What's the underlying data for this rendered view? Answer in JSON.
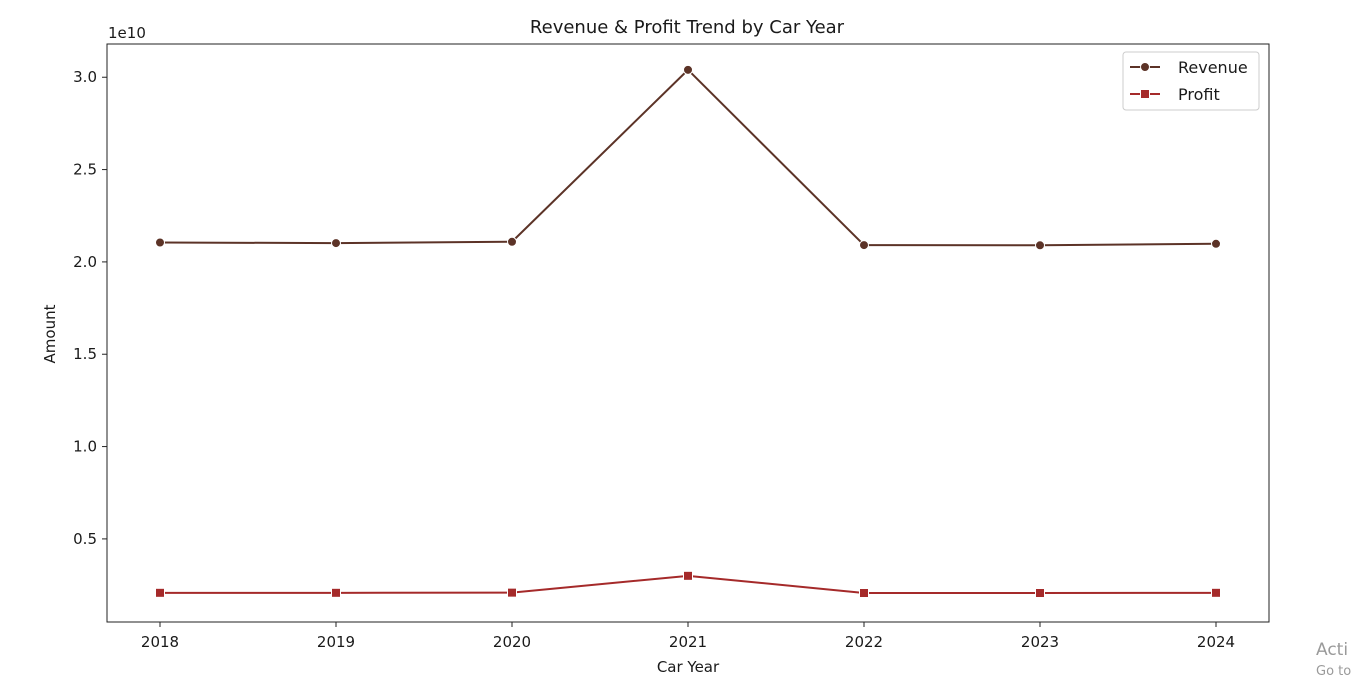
{
  "chart_data": {
    "type": "line",
    "title": "Revenue & Profit Trend by Car Year",
    "xlabel": "Car Year",
    "ylabel": "Amount",
    "y_offset_label": "1e10",
    "categories": [
      "2018",
      "2019",
      "2020",
      "2021",
      "2022",
      "2023",
      "2024"
    ],
    "yticks": [
      0.5,
      1.0,
      1.5,
      2.0,
      2.5,
      3.0
    ],
    "ytick_labels": [
      "0.5",
      "1.0",
      "1.5",
      "2.0",
      "2.5",
      "3.0"
    ],
    "ylim": [
      0.05,
      3.18
    ],
    "grid": false,
    "legend_position": "top-right",
    "series": [
      {
        "name": "Revenue",
        "color": "#5c3327",
        "marker": "circle",
        "values": [
          2.105,
          2.102,
          2.109,
          3.04,
          2.091,
          2.09,
          2.098
        ]
      },
      {
        "name": "Profit",
        "color": "#a52a2a",
        "marker": "square",
        "values": [
          0.208,
          0.208,
          0.209,
          0.3,
          0.207,
          0.207,
          0.208
        ]
      }
    ]
  },
  "watermark": {
    "line1": "Acti",
    "line2": "Go to"
  }
}
